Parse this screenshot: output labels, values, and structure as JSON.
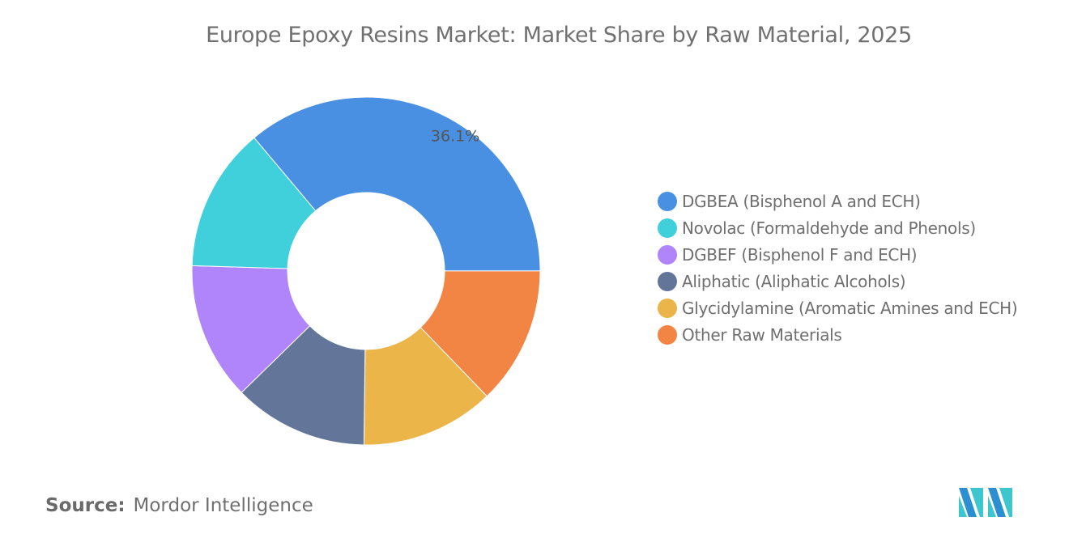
{
  "title": "Europe Epoxy Resins Market: Market Share by Raw Material, 2025",
  "source_label": "Source:",
  "source_value": "Mordor Intelligence",
  "logo_text": "MI",
  "chart_data": {
    "type": "pie",
    "donut": true,
    "title": "Europe Epoxy Resins Market: Market Share by Raw Material, 2025",
    "legend_position": "right",
    "series": [
      {
        "name": "DGBEA (Bisphenol A and ECH)",
        "value": 36.1,
        "label": "36.1%",
        "color": "#4a90e2"
      },
      {
        "name": "Novolac (Formaldehyde and Phenols)",
        "value": 13.4,
        "label": "",
        "color": "#3fd0dc"
      },
      {
        "name": "DGBEF (Bisphenol F and ECH)",
        "value": 12.8,
        "label": "",
        "color": "#b084fa"
      },
      {
        "name": "Aliphatic (Aliphatic Alcohols)",
        "value": 12.5,
        "label": "",
        "color": "#637699"
      },
      {
        "name": "Glycidylamine (Aromatic Amines and ECH)",
        "value": 12.4,
        "label": "",
        "color": "#ebb54a"
      },
      {
        "name": "Other Raw Materials",
        "value": 12.8,
        "label": "",
        "color": "#f28444"
      }
    ]
  }
}
